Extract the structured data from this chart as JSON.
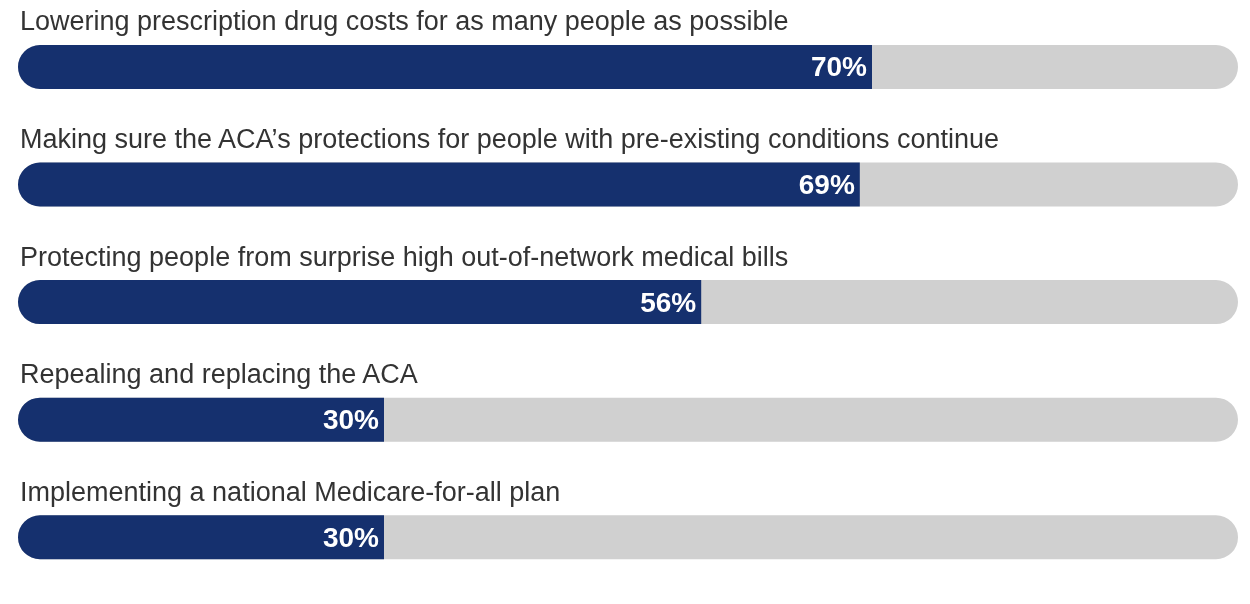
{
  "chart_data": {
    "type": "bar",
    "orientation": "horizontal",
    "categories": [
      "Lowering prescription drug costs for as many people as possible",
      "Making sure the ACA’s protections for people with pre-existing conditions continue",
      "Protecting people from surprise high out-of-network medical bills",
      "Repealing and replacing the ACA",
      "Implementing a national Medicare-for-all plan"
    ],
    "values": [
      70,
      69,
      56,
      30,
      30
    ],
    "value_labels": [
      "70%",
      "69%",
      "56%",
      "30%",
      "30%"
    ],
    "color": "#15306e",
    "xlim": [
      0,
      100
    ]
  }
}
